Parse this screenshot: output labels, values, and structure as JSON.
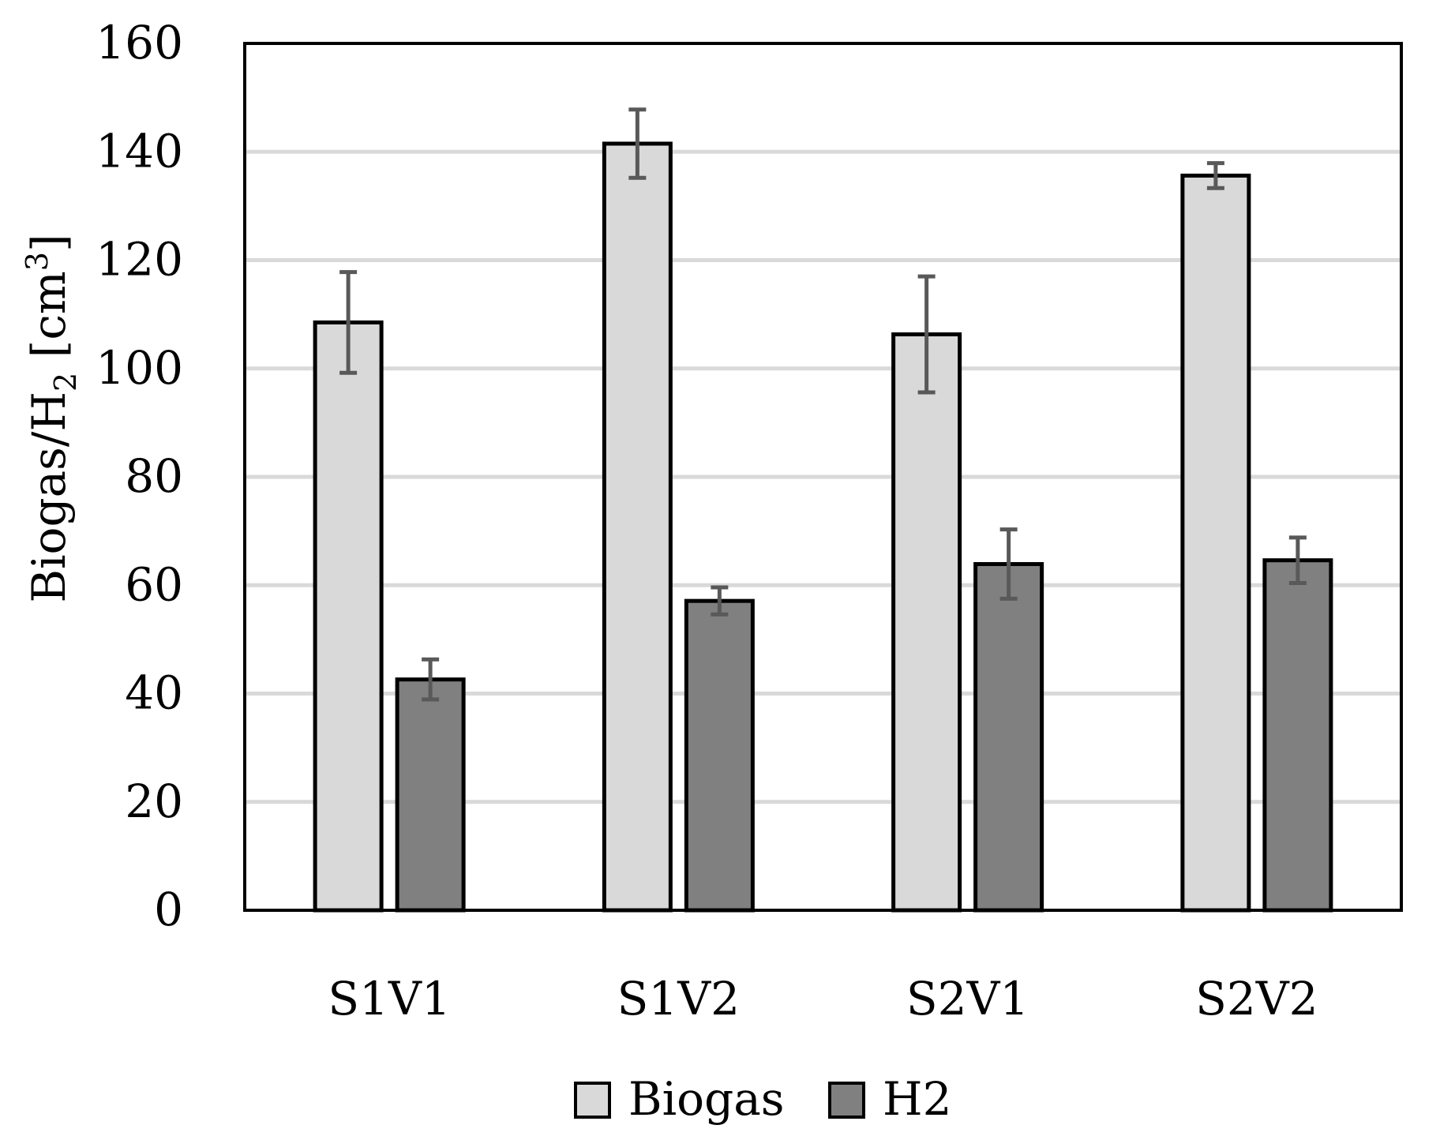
{
  "chart_data": {
    "type": "bar",
    "title": "",
    "xlabel": "",
    "ylabel": {
      "main": "Biogas/H",
      "sub": "2",
      "unit_open": " [cm",
      "sup": "3",
      "unit_close": "]"
    },
    "ylim": [
      0,
      160
    ],
    "yticks": [
      0,
      20,
      40,
      60,
      80,
      100,
      120,
      140,
      160
    ],
    "grid": true,
    "categories": [
      "S1V1",
      "S1V2",
      "S2V1",
      "S2V2"
    ],
    "series": [
      {
        "name": "Biogas",
        "color": "#d9d9d9",
        "values": [
          108.5,
          141.5,
          106.3,
          135.6
        ],
        "errors": [
          9.3,
          6.3,
          10.7,
          2.3
        ]
      },
      {
        "name": "H2",
        "color": "#808080",
        "values": [
          42.6,
          57.1,
          63.9,
          64.6
        ],
        "errors": [
          3.7,
          2.5,
          6.4,
          4.2
        ]
      }
    ],
    "error_bar_color": "#595959",
    "legend": {
      "position": "bottom-center",
      "entries": [
        "Biogas",
        "H2"
      ]
    }
  }
}
